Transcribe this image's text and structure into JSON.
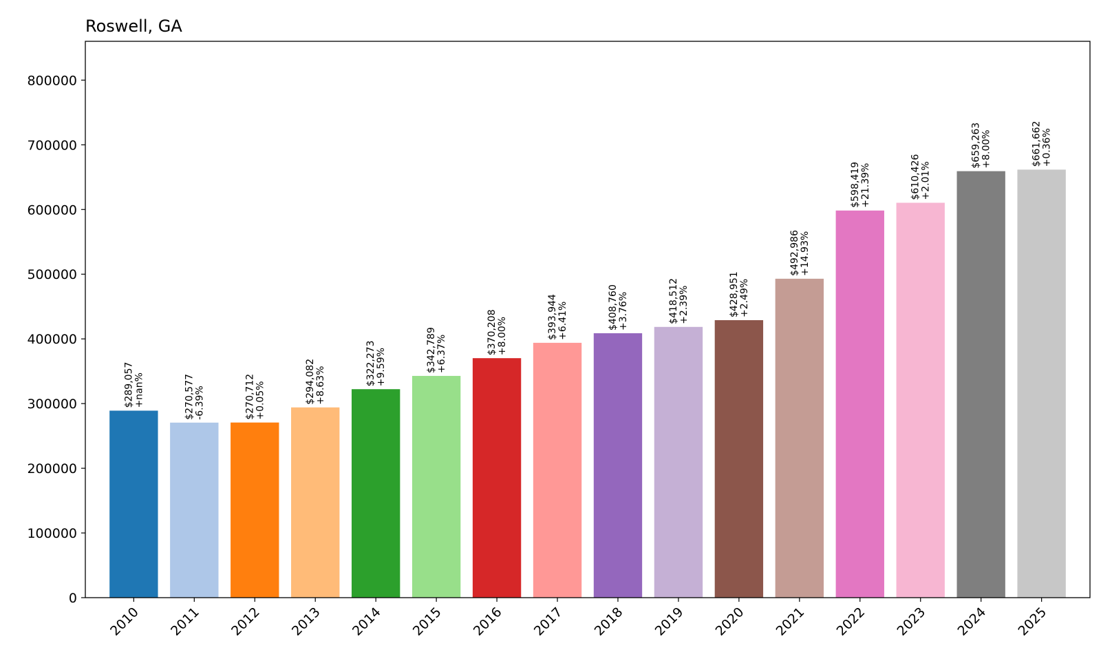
{
  "chart_data": {
    "type": "bar",
    "title": "Roswell, GA",
    "xlabel": "",
    "ylabel": "",
    "ylim": [
      0,
      860000
    ],
    "yticks": [
      0,
      100000,
      200000,
      300000,
      400000,
      500000,
      600000,
      700000,
      800000
    ],
    "ytick_labels": [
      "0",
      "100000",
      "200000",
      "300000",
      "400000",
      "500000",
      "600000",
      "700000",
      "800000"
    ],
    "grid": false,
    "legend": "none",
    "categories": [
      "2010",
      "2011",
      "2012",
      "2013",
      "2014",
      "2015",
      "2016",
      "2017",
      "2018",
      "2019",
      "2020",
      "2021",
      "2022",
      "2023",
      "2024",
      "2025"
    ],
    "values": [
      289057,
      270577,
      270712,
      294082,
      322273,
      342789,
      370208,
      393944,
      408760,
      418512,
      428951,
      492986,
      598419,
      610426,
      659263,
      661662
    ],
    "value_labels": [
      "$289,057",
      "$270,577",
      "$270,712",
      "$294,082",
      "$322,273",
      "$342,789",
      "$370,208",
      "$393,944",
      "$408,760",
      "$418,512",
      "$428,951",
      "$492,986",
      "$598,419",
      "$610,426",
      "$659,263",
      "$661,662"
    ],
    "change_labels": [
      "+nan%",
      "-6.39%",
      "+0.05%",
      "+8.63%",
      "+9.59%",
      "+6.37%",
      "+8.00%",
      "+6.41%",
      "+3.76%",
      "+2.39%",
      "+2.49%",
      "+14.93%",
      "+21.39%",
      "+2.01%",
      "+8.00%",
      "+0.36%"
    ],
    "colors": [
      "#1f77b4",
      "#aec7e8",
      "#ff7f0e",
      "#ffbb78",
      "#2ca02c",
      "#98df8a",
      "#d62728",
      "#ff9896",
      "#9467bd",
      "#c5b0d5",
      "#8c564b",
      "#c49c94",
      "#e377c2",
      "#f7b6d2",
      "#7f7f7f",
      "#c7c7c7"
    ]
  }
}
